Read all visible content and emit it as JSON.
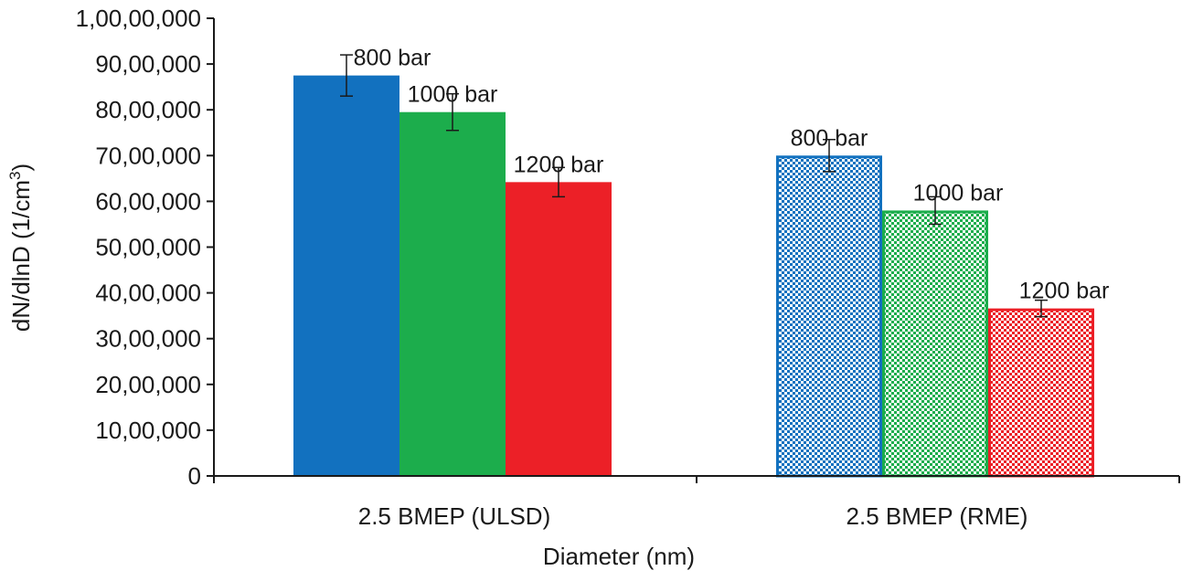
{
  "chart_data": {
    "type": "bar",
    "title": "",
    "xlabel": "Diameter (nm)",
    "ylabel": "dN/dlnD (1/cm",
    "ylabel_sup": "3",
    "ylabel_end": ")",
    "ylim": [
      0,
      10000000
    ],
    "yticks": [
      0,
      1000000,
      2000000,
      3000000,
      4000000,
      5000000,
      6000000,
      7000000,
      8000000,
      9000000,
      10000000
    ],
    "ytick_labels": [
      "0",
      "10,00,000",
      "20,00,000",
      "30,00,000",
      "40,00,000",
      "50,00,000",
      "60,00,000",
      "70,00,000",
      "80,00,000",
      "90,00,000",
      "1,00,00,000"
    ],
    "grid": false,
    "legend": "none",
    "categories": [
      "2.5 BMEP (ULSD)",
      "2.5 BMEP (RME)"
    ],
    "groups": [
      {
        "category": "2.5 BMEP (ULSD)",
        "pattern": "solid",
        "bars": [
          {
            "label": "800 bar",
            "value": 8750000,
            "err": 450000,
            "color": "#1271bf"
          },
          {
            "label": "1000 bar",
            "value": 7950000,
            "err": 400000,
            "color": "#1cad4c"
          },
          {
            "label": "1200 bar",
            "value": 6420000,
            "err": 320000,
            "color": "#ec2027"
          }
        ]
      },
      {
        "category": "2.5 BMEP (RME)",
        "pattern": "checkered",
        "bars": [
          {
            "label": "800 bar",
            "value": 7000000,
            "err": 350000,
            "color": "#1271bf"
          },
          {
            "label": "1000 bar",
            "value": 5800000,
            "err": 300000,
            "color": "#1cad4c"
          },
          {
            "label": "1200 bar",
            "value": 3660000,
            "err": 180000,
            "color": "#ec2027"
          }
        ]
      }
    ]
  }
}
